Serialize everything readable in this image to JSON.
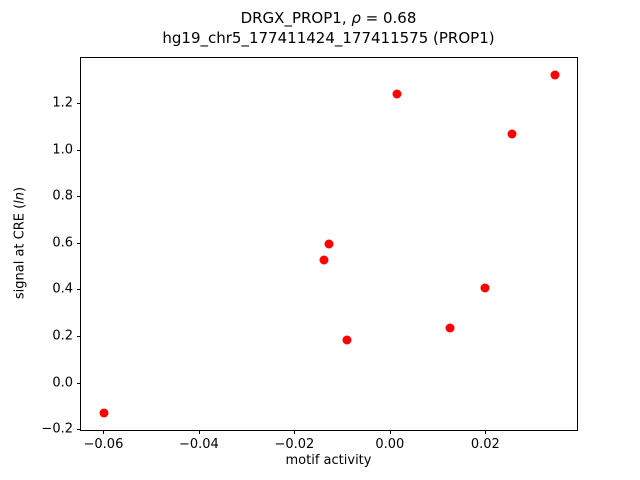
{
  "title": {
    "prefix": "DRGX_PROP1, ",
    "rho_symbol": "ρ",
    "suffix": " = 0.68",
    "line2": "hg19_chr5_177411424_177411575 (PROP1)"
  },
  "ylabel_parts": {
    "prefix": "signal at CRE (",
    "italic": "ln",
    "suffix": ")"
  },
  "chart_data": {
    "type": "scatter",
    "title": "DRGX_PROP1, ρ = 0.68\nhg19_chr5_177411424_177411575 (PROP1)",
    "xlabel": "motif activity",
    "ylabel": "signal at CRE (ln)",
    "xlim": [
      -0.0647,
      0.0392
    ],
    "ylim": [
      -0.2025,
      1.3925
    ],
    "grid": false,
    "legend": "none",
    "marker_color": "#ff0000",
    "x_ticks": [
      {
        "value": -0.06,
        "label": "−0.06"
      },
      {
        "value": -0.04,
        "label": "−0.04"
      },
      {
        "value": -0.02,
        "label": "−0.02"
      },
      {
        "value": 0.0,
        "label": "0.00"
      },
      {
        "value": 0.02,
        "label": "0.02"
      }
    ],
    "y_ticks": [
      {
        "value": -0.2,
        "label": "−0.2"
      },
      {
        "value": 0.0,
        "label": "0.0"
      },
      {
        "value": 0.2,
        "label": "0.2"
      },
      {
        "value": 0.4,
        "label": "0.4"
      },
      {
        "value": 0.6,
        "label": "0.6"
      },
      {
        "value": 0.8,
        "label": "0.8"
      },
      {
        "value": 1.0,
        "label": "1.0"
      },
      {
        "value": 1.2,
        "label": "1.2"
      }
    ],
    "points": [
      {
        "x": -0.0598,
        "y": -0.13
      },
      {
        "x": -0.0138,
        "y": 0.525
      },
      {
        "x": -0.0128,
        "y": 0.595
      },
      {
        "x": -0.009,
        "y": 0.185
      },
      {
        "x": 0.0015,
        "y": 1.24
      },
      {
        "x": 0.0125,
        "y": 0.235
      },
      {
        "x": 0.02,
        "y": 0.405
      },
      {
        "x": 0.0255,
        "y": 1.065
      },
      {
        "x": 0.0345,
        "y": 1.32
      }
    ]
  }
}
